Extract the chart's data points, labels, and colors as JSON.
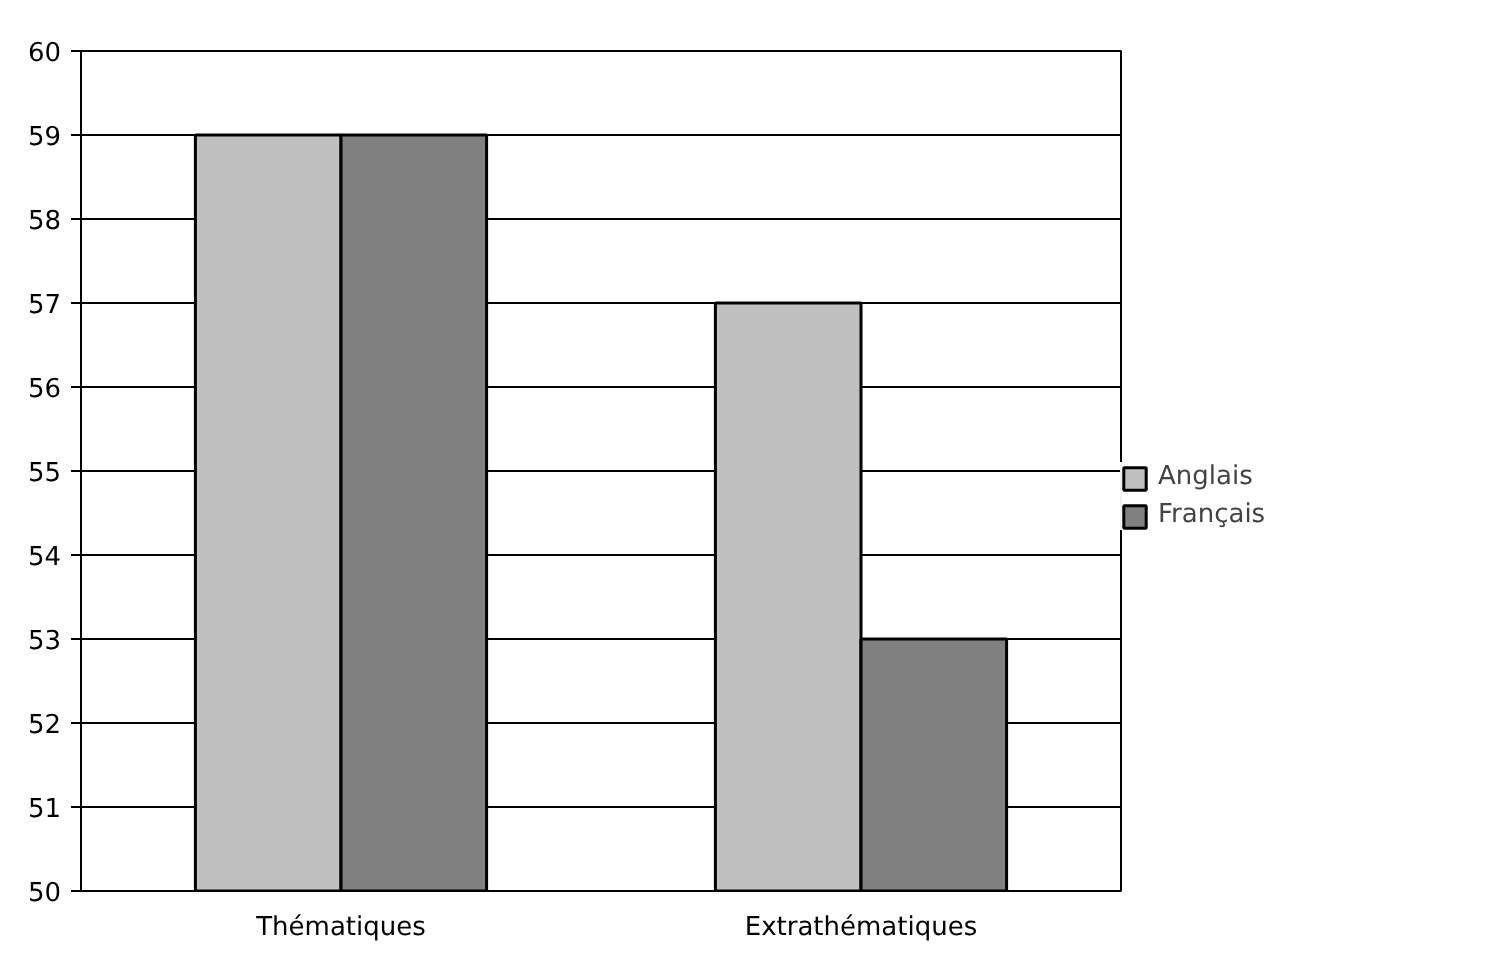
{
  "chart_data": {
    "type": "bar",
    "categories": [
      "Thématiques",
      "Extrathématiques"
    ],
    "series": [
      {
        "name": "Anglais",
        "color": "#c0c0c0",
        "values": [
          59,
          57
        ]
      },
      {
        "name": "Français",
        "color": "#808080",
        "values": [
          59,
          53
        ]
      }
    ],
    "ylim": [
      50,
      60
    ],
    "yticks": [
      50,
      51,
      52,
      53,
      54,
      55,
      56,
      57,
      58,
      59,
      60
    ],
    "grid": "y",
    "legend": "right"
  }
}
